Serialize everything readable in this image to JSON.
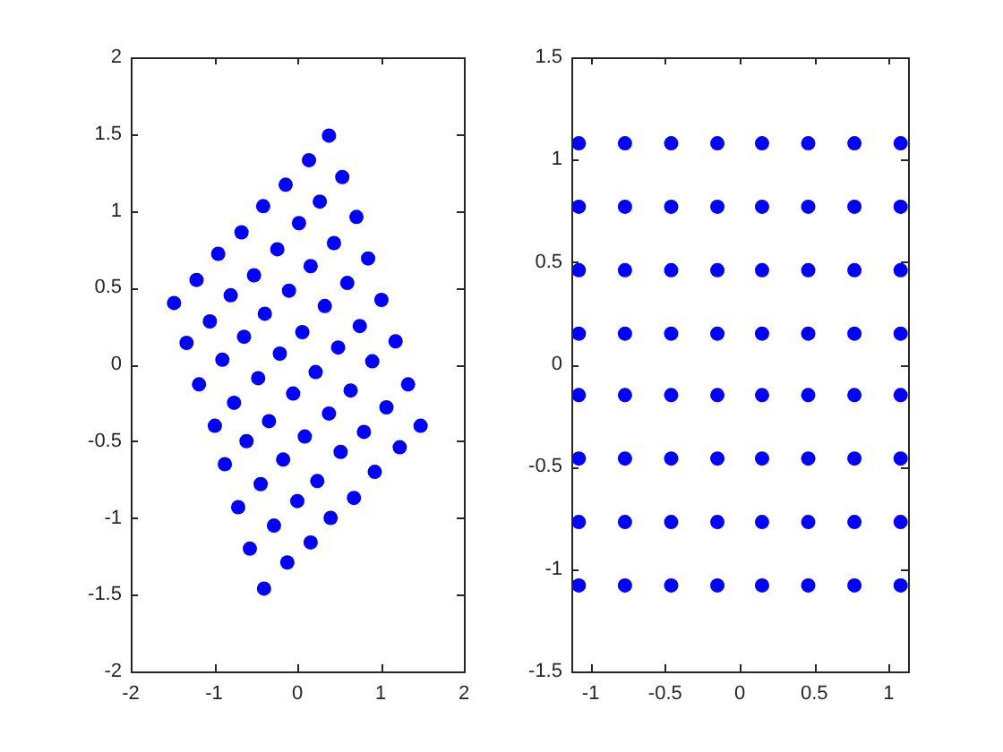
{
  "chart_data": [
    {
      "type": "scatter",
      "color": "#0000ff",
      "marker": "circle",
      "xlim": [
        -2,
        2
      ],
      "ylim": [
        -2,
        2
      ],
      "xticks": [
        -2,
        -1,
        0,
        1,
        2
      ],
      "yticks": [
        -2,
        -1.5,
        -1,
        -0.5,
        0,
        0.5,
        1,
        1.5,
        2
      ],
      "x": [
        0.38,
        0.14,
        0.54,
        -0.14,
        0.27,
        -0.41,
        0.71,
        0.02,
        -0.67,
        -0.24,
        0.44,
        -0.95,
        0.85,
        0.16,
        -0.52,
        -1.21,
        0.6,
        -0.1,
        -0.8,
        -1.48,
        1.01,
        0.33,
        -0.39,
        -1.05,
        0.75,
        0.06,
        -0.64,
        1.18,
        -1.33,
        0.49,
        -0.21,
        -0.9,
        0.9,
        0.22,
        1.33,
        -1.18,
        -0.47,
        0.64,
        -0.05,
        -0.76,
        1.07,
        0.38,
        -0.34,
        -0.99,
        1.48,
        0.8,
        0.09,
        -0.61,
        1.23,
        0.52,
        -0.17,
        -0.87,
        0.93,
        0.24,
        -0.44,
        0.68,
        0,
        -0.71,
        0.4,
        -0.28,
        0.16,
        -0.57,
        -0.12,
        -0.4
      ],
      "values": [
        1.49,
        1.33,
        1.22,
        1.17,
        1.06,
        1.03,
        0.96,
        0.92,
        0.86,
        0.75,
        0.79,
        0.72,
        0.69,
        0.64,
        0.58,
        0.55,
        0.53,
        0.48,
        0.45,
        0.4,
        0.42,
        0.38,
        0.33,
        0.28,
        0.25,
        0.21,
        0.18,
        0.15,
        0.14,
        0.11,
        0.07,
        0.03,
        0.02,
        -0.05,
        -0.13,
        -0.13,
        -0.09,
        -0.17,
        -0.19,
        -0.25,
        -0.28,
        -0.32,
        -0.37,
        -0.4,
        -0.4,
        -0.44,
        -0.47,
        -0.5,
        -0.54,
        -0.57,
        -0.62,
        -0.65,
        -0.7,
        -0.76,
        -0.78,
        -0.87,
        -0.89,
        -0.93,
        -1,
        -1.05,
        -1.16,
        -1.2,
        -1.29,
        -1.46
      ]
    },
    {
      "type": "scatter",
      "color": "#0000ff",
      "marker": "circle",
      "xlim": [
        -1.13,
        1.13
      ],
      "ylim": [
        -1.5,
        1.5
      ],
      "xticks": [
        -1,
        -0.5,
        0,
        0.5,
        1
      ],
      "yticks": [
        -1.5,
        -1,
        -0.5,
        0,
        0.5,
        1,
        1.5
      ],
      "x": [
        -1.08,
        -0.77,
        -0.46,
        -0.15,
        0.15,
        0.46,
        0.77,
        1.08,
        -1.08,
        -0.77,
        -0.46,
        -0.15,
        0.15,
        0.46,
        0.77,
        1.08,
        -1.08,
        -0.77,
        -0.46,
        -0.15,
        0.15,
        0.46,
        0.77,
        1.08,
        -1.08,
        -0.77,
        -0.46,
        -0.15,
        0.15,
        0.46,
        0.77,
        1.08,
        -1.08,
        -0.77,
        -0.46,
        -0.15,
        0.15,
        0.46,
        0.77,
        1.08,
        -1.08,
        -0.77,
        -0.46,
        -0.15,
        0.15,
        0.46,
        0.77,
        1.08,
        -1.08,
        -0.77,
        -0.46,
        -0.15,
        0.15,
        0.46,
        0.77,
        1.08,
        -1.08,
        -0.77,
        -0.46,
        -0.15,
        0.15,
        0.46,
        0.77,
        1.08
      ],
      "values": [
        1.08,
        1.08,
        1.08,
        1.08,
        1.08,
        1.08,
        1.08,
        1.08,
        0.77,
        0.77,
        0.77,
        0.77,
        0.77,
        0.77,
        0.77,
        0.77,
        0.46,
        0.46,
        0.46,
        0.46,
        0.46,
        0.46,
        0.46,
        0.46,
        0.15,
        0.15,
        0.15,
        0.15,
        0.15,
        0.15,
        0.15,
        0.15,
        -0.15,
        -0.15,
        -0.15,
        -0.15,
        -0.15,
        -0.15,
        -0.15,
        -0.15,
        -0.46,
        -0.46,
        -0.46,
        -0.46,
        -0.46,
        -0.46,
        -0.46,
        -0.46,
        -0.77,
        -0.77,
        -0.77,
        -0.77,
        -0.77,
        -0.77,
        -0.77,
        -0.77,
        -1.08,
        -1.08,
        -1.08,
        -1.08,
        -1.08,
        -1.08,
        -1.08,
        -1.08
      ]
    }
  ]
}
